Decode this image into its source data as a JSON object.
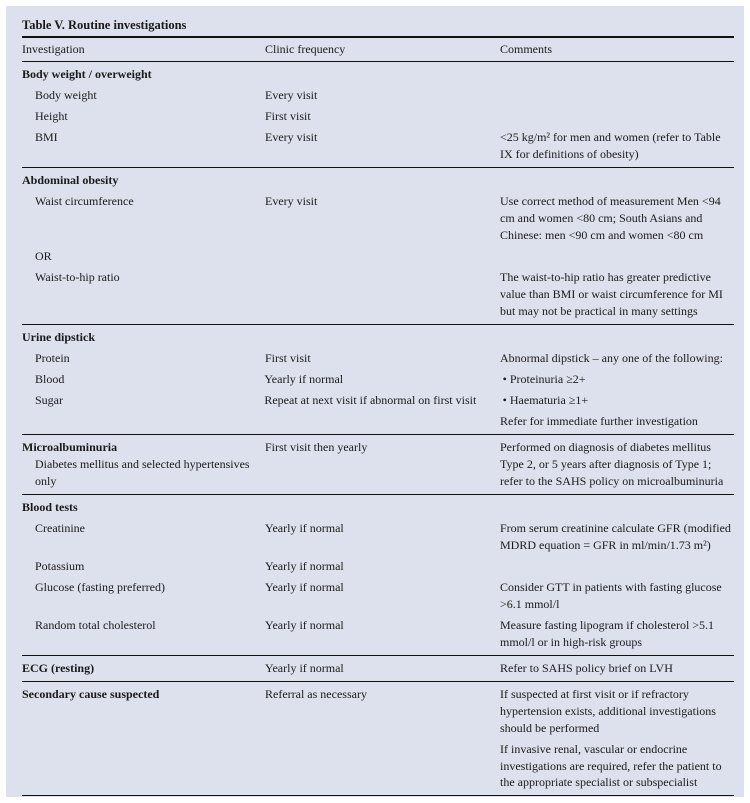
{
  "table": {
    "title": "Table V. Routine investigations",
    "headers": [
      "Investigation",
      "Clinic frequency",
      "Comments"
    ],
    "sections": [
      {
        "title": "Body weight / overweight",
        "frequency": "",
        "comment": "",
        "rows": [
          {
            "investigation": "Body weight",
            "frequency": "Every visit",
            "comment": ""
          },
          {
            "investigation": "Height",
            "frequency": "First visit",
            "comment": ""
          },
          {
            "investigation": "BMI",
            "frequency": "Every visit",
            "comment": "<25 kg/m² for men and women (refer to Table IX for definitions of obesity)"
          }
        ]
      },
      {
        "title": "Abdominal obesity",
        "frequency": "",
        "comment": "",
        "rows": [
          {
            "investigation": "Waist circumference",
            "frequency": "Every visit",
            "comment": "Use correct method of measurement Men <94 cm and women <80 cm; South Asians and Chinese: men <90 cm and women <80 cm"
          },
          {
            "investigation": "OR",
            "frequency": "",
            "comment": ""
          },
          {
            "investigation": "Waist-to-hip ratio",
            "frequency": "",
            "comment": "The waist-to-hip ratio has greater predictive value than BMI or waist circumference for MI but may not be practical in many settings"
          }
        ]
      },
      {
        "title": "Urine dipstick",
        "frequency": "",
        "comment": "",
        "rows": [
          {
            "investigation": "Protein",
            "frequency": "First visit",
            "comment": "Abnormal dipstick – any one of the following:"
          },
          {
            "investigation": "Blood",
            "frequency": "Yearly if normal",
            "comment": "•  Proteinuria ≥2+"
          },
          {
            "investigation": "Sugar",
            "frequency": "Repeat at next visit if abnormal on first visit",
            "comment": "•  Haematuria ≥1+"
          },
          {
            "investigation": "",
            "frequency": "",
            "comment": "Refer for immediate further investigation"
          }
        ]
      },
      {
        "title": "Microalbuminuria",
        "subtitle": "Diabetes mellitus and selected hypertensives only",
        "frequency": "First visit then yearly",
        "comment": "Performed on diagnosis of diabetes mellitus Type 2, or 5 years after diagnosis of Type 1; refer to the SAHS policy on microalbuminuria",
        "rows": []
      },
      {
        "title": "Blood tests",
        "frequency": "",
        "comment": "",
        "rows": [
          {
            "investigation": "Creatinine",
            "frequency": "Yearly if normal",
            "comment": "From serum creatinine calculate GFR (modified MDRD equation = GFR in ml/min/1.73 m²)"
          },
          {
            "investigation": "Potassium",
            "frequency": "Yearly if normal",
            "comment": ""
          },
          {
            "investigation": "Glucose (fasting preferred)",
            "frequency": "Yearly if normal",
            "comment": "Consider GTT in patients with fasting glucose >6.1 mmol/l"
          },
          {
            "investigation": "Random total cholesterol",
            "frequency": "Yearly if normal",
            "comment": "Measure fasting lipogram if cholesterol >5.1 mmol/l or in high-risk groups"
          }
        ]
      },
      {
        "title": "ECG (resting)",
        "frequency": "Yearly if normal",
        "comment": "Refer to SAHS policy brief on LVH",
        "rows": []
      },
      {
        "title": "Secondary cause suspected",
        "frequency": "Referral as necessary",
        "comment": "If suspected at first visit or if refractory hypertension exists, additional investigations should be performed",
        "rows": [
          {
            "investigation": "",
            "frequency": "",
            "comment": "If invasive renal, vascular or endocrine investigations are required, refer the patient to the appropriate specialist or subspecialist"
          }
        ]
      }
    ]
  }
}
